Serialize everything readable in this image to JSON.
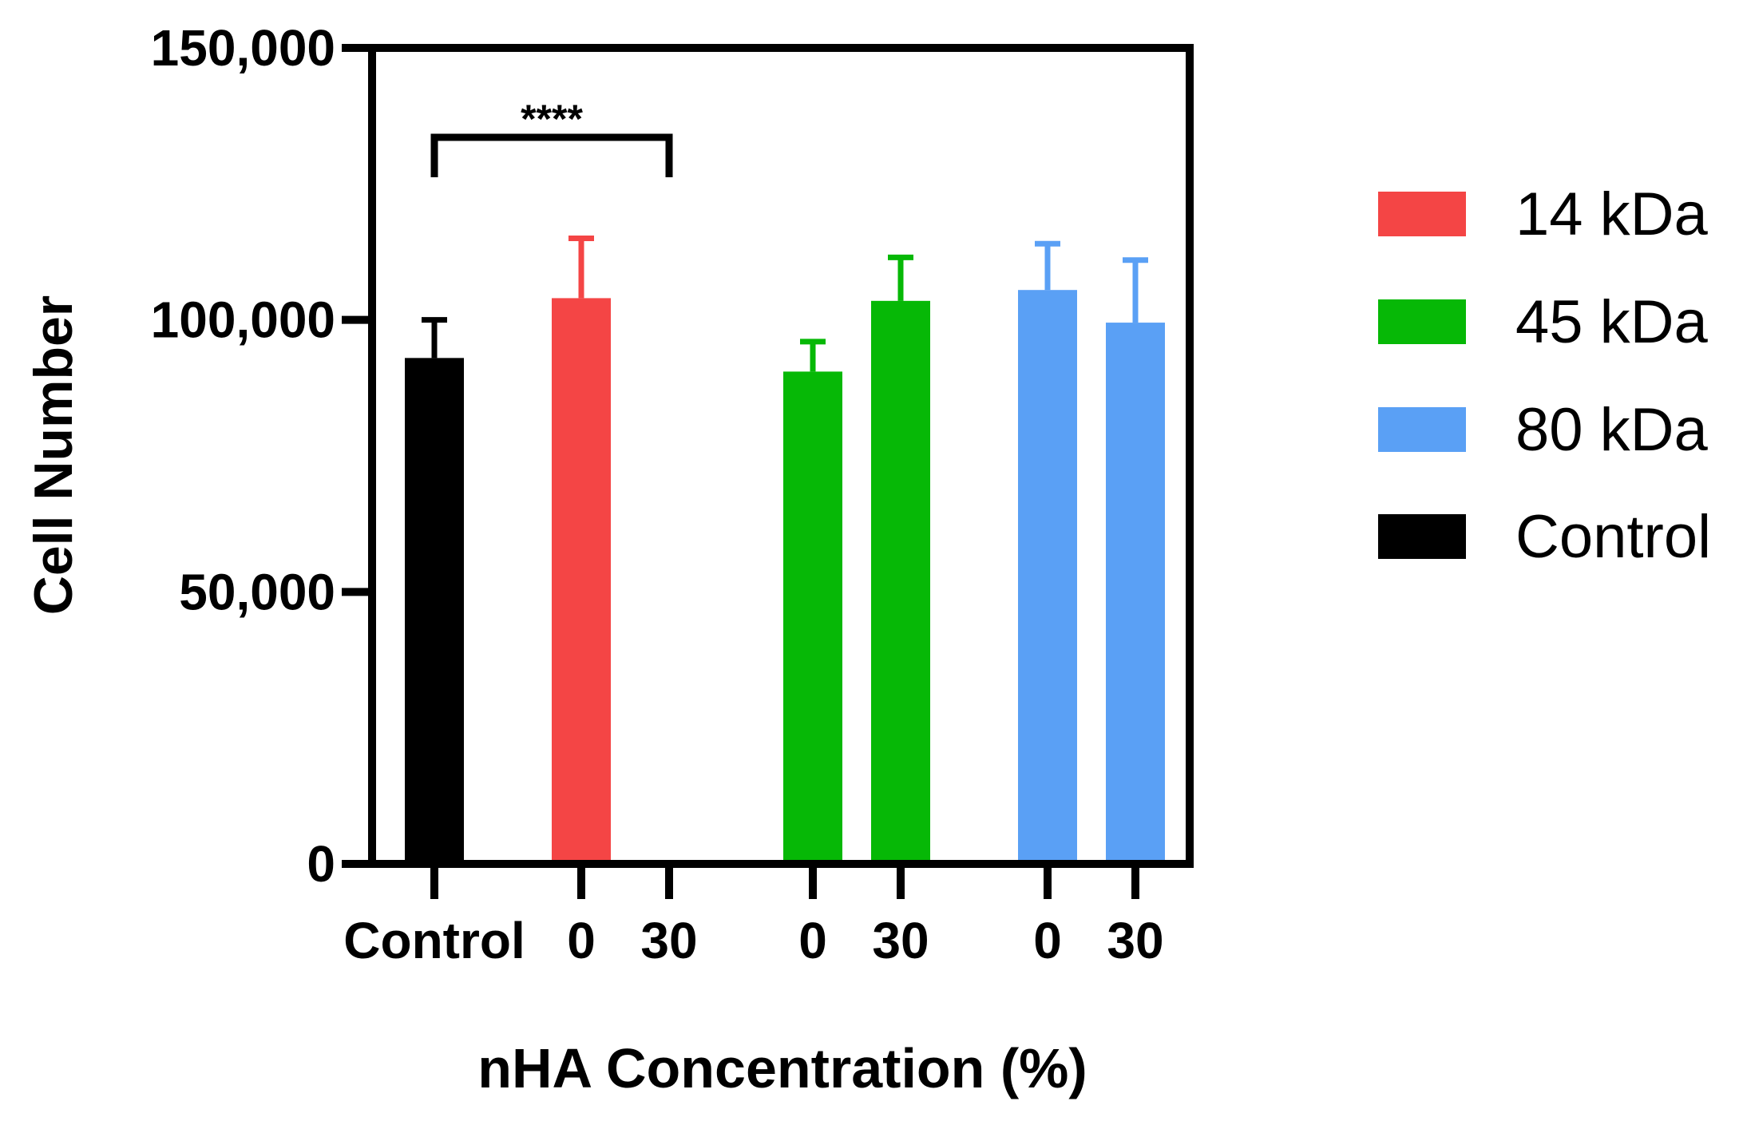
{
  "colors": {
    "14 kDa": "#f44545",
    "45 kDa": "#06b806",
    "80 kDa": "#5aa0f5",
    "Control": "#000000",
    "axis": "#000000"
  },
  "chart_data": {
    "type": "bar",
    "xlabel": "nHA Concentration (%)",
    "ylabel": "Cell Number",
    "ylim": [
      0,
      150000
    ],
    "yticks": [
      0,
      50000,
      100000,
      150000
    ],
    "ytick_labels": [
      "0",
      "50,000",
      "100,000",
      "150,000"
    ],
    "grid": false,
    "legend_position": "right",
    "legend": [
      "14 kDa",
      "45 kDa",
      "80 kDa",
      "Control"
    ],
    "bars": [
      {
        "category": "Control",
        "series": "Control",
        "value": 93000,
        "error": 7000
      },
      {
        "category": "0",
        "series": "14 kDa",
        "value": 104000,
        "error": 11000
      },
      {
        "category": "30",
        "series": "14 kDa",
        "value": 0,
        "error": 0
      },
      {
        "category": "0",
        "series": "45 kDa",
        "value": 90500,
        "error": 5500
      },
      {
        "category": "30",
        "series": "45 kDa",
        "value": 103500,
        "error": 8000
      },
      {
        "category": "0",
        "series": "80 kDa",
        "value": 105500,
        "error": 8500
      },
      {
        "category": "30",
        "series": "80 kDa",
        "value": 99500,
        "error": 11500
      }
    ],
    "annotations": [
      {
        "text": "****",
        "from_bar": 0,
        "to_bar": 2
      }
    ]
  }
}
